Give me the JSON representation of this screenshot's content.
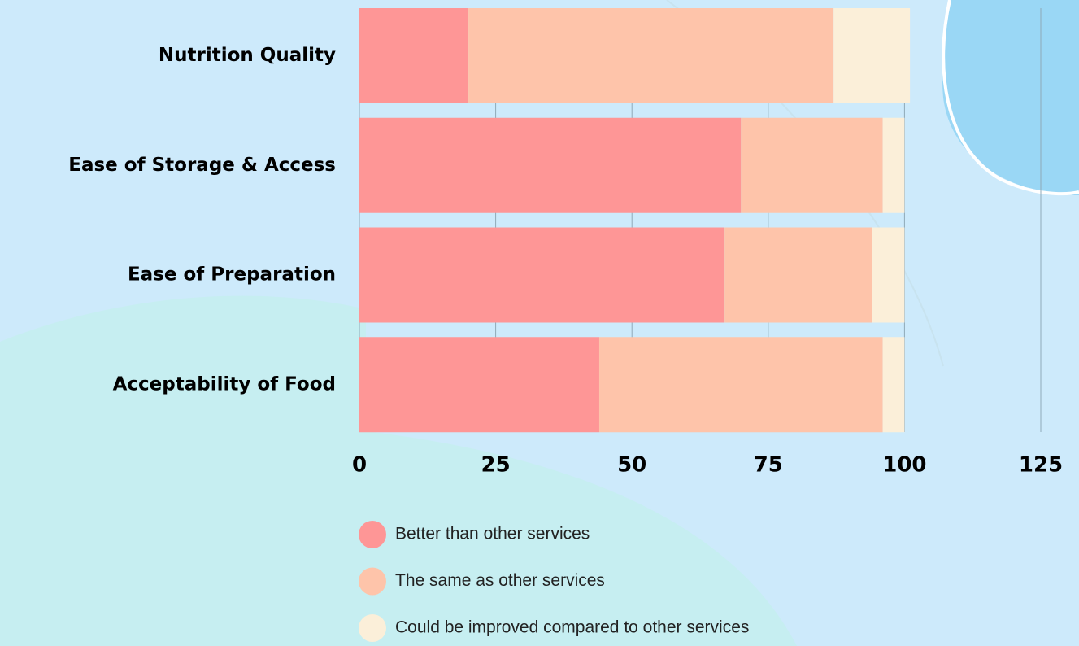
{
  "chart_data": {
    "type": "stacked_barh",
    "categories": [
      "Nutrition Quality",
      "Ease of Storage & Access",
      "Ease of Preparation",
      "Acceptability of Food"
    ],
    "series": [
      {
        "name": "Better than other services",
        "color": "#fe9696",
        "values": [
          20,
          70,
          67,
          44
        ]
      },
      {
        "name": "The same as other services",
        "color": "#fec4aa",
        "values": [
          67,
          26,
          27,
          52
        ]
      },
      {
        "name": "Could be improved compared to other services",
        "color": "#fbefd9",
        "values": [
          14,
          4,
          6,
          4
        ]
      }
    ],
    "xlim": [
      0,
      125
    ],
    "xticks": [
      0,
      25,
      50,
      75,
      100,
      125
    ],
    "grid": true
  }
}
